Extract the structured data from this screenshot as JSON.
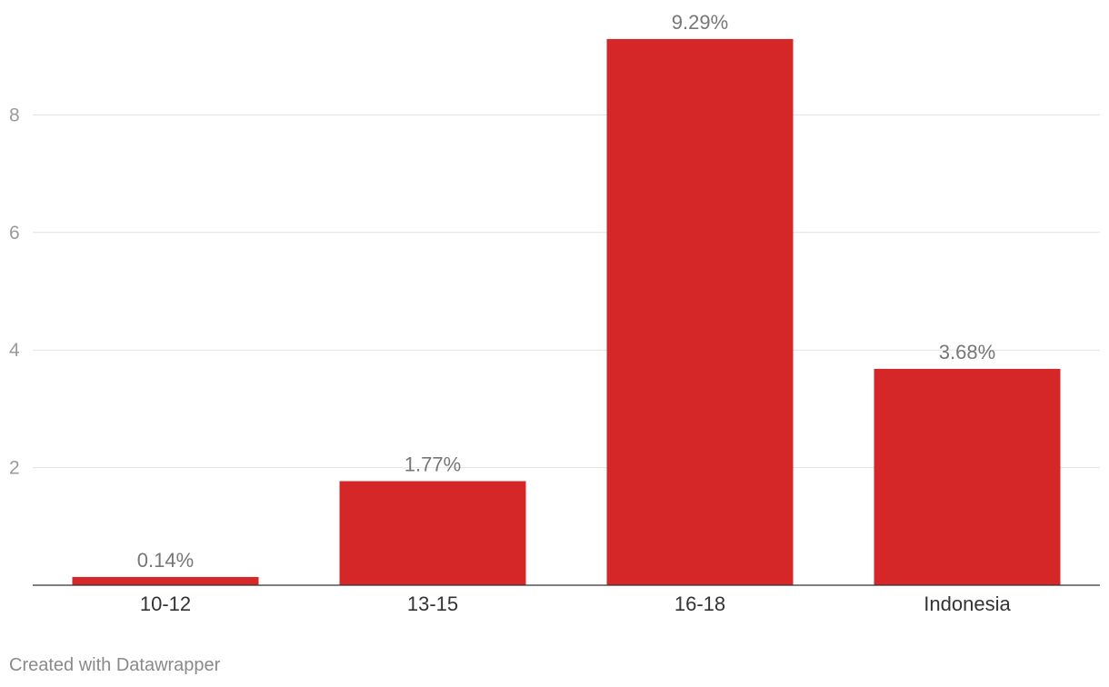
{
  "chart_data": {
    "type": "bar",
    "categories": [
      "10-12",
      "13-15",
      "16-18",
      "Indonesia"
    ],
    "values": [
      0.14,
      1.77,
      9.29,
      3.68
    ],
    "value_labels": [
      "0.14%",
      "1.77%",
      "9.29%",
      "3.68%"
    ],
    "title": "",
    "xlabel": "",
    "ylabel": "",
    "ylim": [
      0,
      10
    ],
    "yticks": [
      2,
      4,
      6,
      8
    ],
    "grid": true,
    "bar_color": "#d62728",
    "legend": "none"
  },
  "footer": {
    "credit": "Created with Datawrapper"
  }
}
